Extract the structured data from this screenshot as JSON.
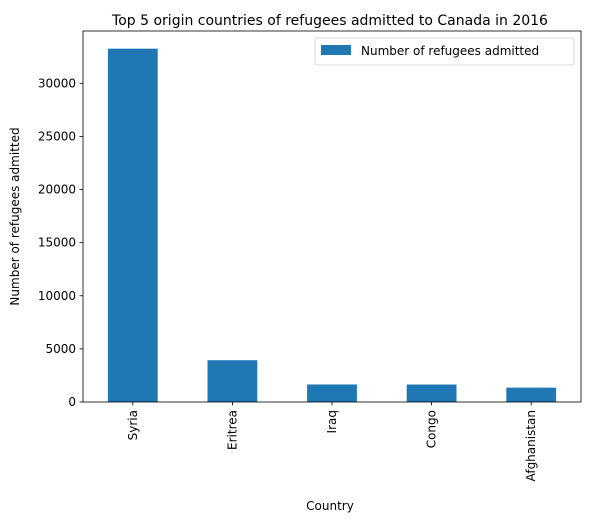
{
  "chart_data": {
    "type": "bar",
    "title": "Top 5 origin countries of refugees admitted to Canada in 2016",
    "xlabel": "Country",
    "ylabel": "Number of refugees admitted",
    "categories": [
      "Syria",
      "Eritrea",
      "Iraq",
      "Congo",
      "Afghanistan"
    ],
    "series": [
      {
        "name": "Number of refugees admitted",
        "values": [
          33266,
          3934,
          1650,
          1644,
          1352
        ],
        "color": "#1f77b4"
      }
    ],
    "ylim": [
      0,
      34930
    ],
    "yticks": [
      0,
      5000,
      10000,
      15000,
      20000,
      25000,
      30000
    ],
    "grid": false,
    "legend_position": "top-right"
  }
}
